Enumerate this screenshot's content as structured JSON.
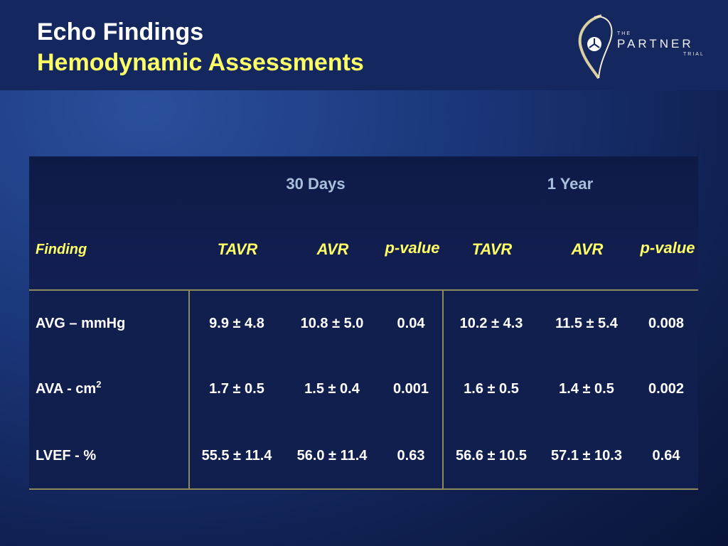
{
  "slide": {
    "title_line1": "Echo Findings",
    "title_line2": "Hemodynamic Assessments",
    "logo": {
      "the": "THE",
      "partner": "PARTNER",
      "trial": "TRIAL"
    }
  },
  "table": {
    "groups": [
      "30 Days",
      "1 Year"
    ],
    "finding_header": "Finding",
    "columns": [
      "TAVR",
      "AVR",
      "p-value",
      "TAVR",
      "AVR",
      "p-value"
    ],
    "rows": [
      {
        "finding": "AVG – mmHg",
        "unit_sup": "",
        "values": [
          "9.9 ± 4.8",
          "10.8 ± 5.0",
          "0.04",
          "10.2 ± 4.3",
          "11.5 ± 5.4",
          "0.008"
        ]
      },
      {
        "finding": "AVA - cm",
        "unit_sup": "2",
        "values": [
          "1.7 ± 0.5",
          "1.5 ± 0.4",
          "0.001",
          "1.6 ± 0.5",
          "1.4 ± 0.5",
          "0.002"
        ]
      },
      {
        "finding": "LVEF - %",
        "unit_sup": "",
        "values": [
          "55.5 ± 11.4",
          "56.0 ± 11.4",
          "0.63",
          "56.6 ± 10.5",
          "57.1 ± 10.3",
          "0.64"
        ]
      }
    ]
  },
  "colors": {
    "background": "#1a3578",
    "title_white": "#ffffff",
    "title_yellow": "#ffff66",
    "group_header": "#a9c0dc",
    "rule": "#8f8a5c"
  }
}
